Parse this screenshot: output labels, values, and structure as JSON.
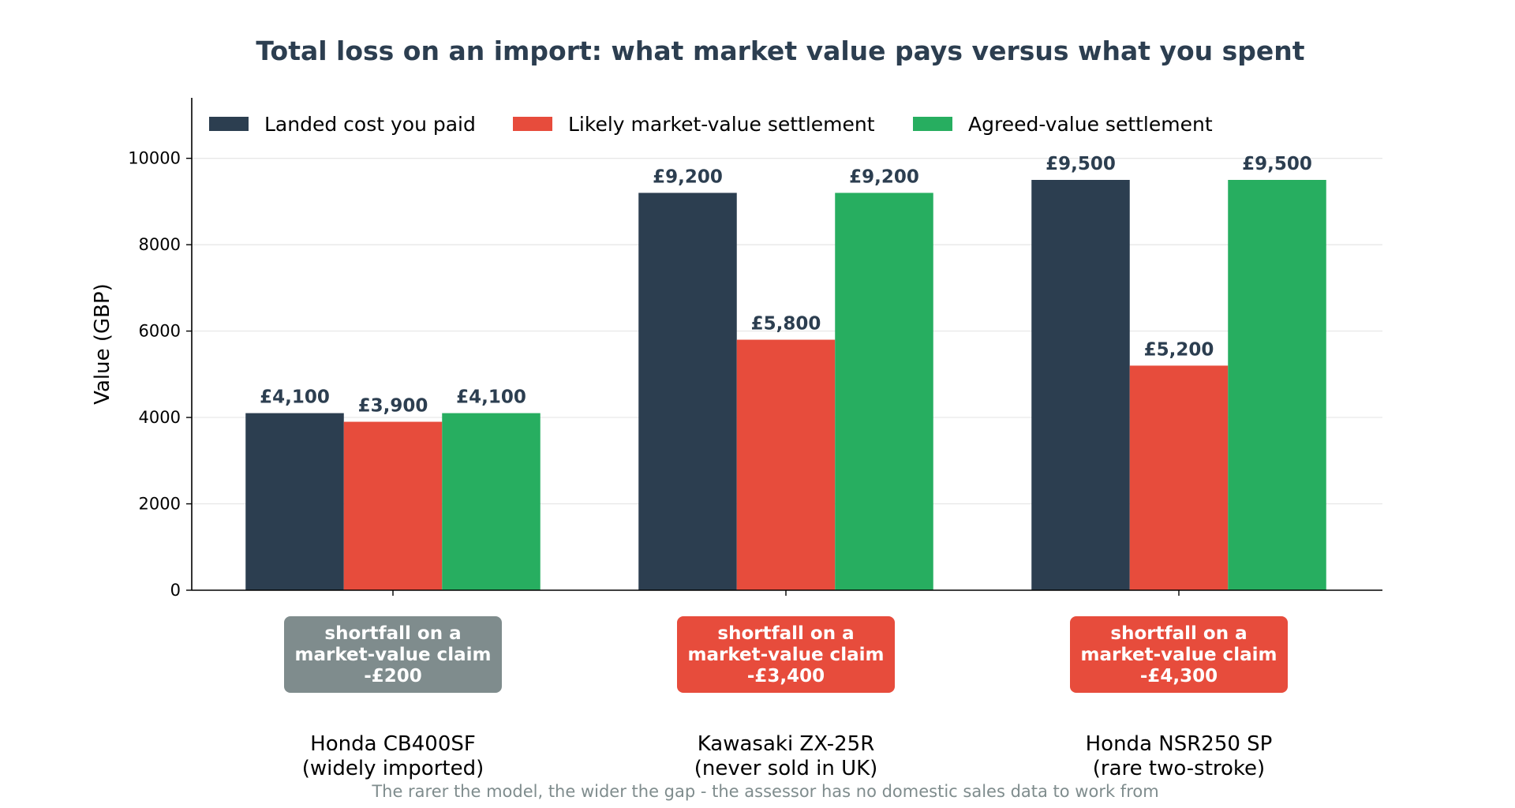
{
  "chart_data": {
    "type": "bar",
    "title": "Total loss on an import: what market value pays versus what you spent",
    "xlabel": "",
    "ylabel": "Value (GBP)",
    "ylim": [
      0,
      11400
    ],
    "yticks": [
      0,
      2000,
      4000,
      6000,
      8000,
      10000
    ],
    "grid": "horizontal",
    "legend_position": "top-left",
    "categories": [
      [
        "Honda CB400SF",
        "(widely imported)"
      ],
      [
        "Kawasaki ZX-25R",
        "(never sold in UK)"
      ],
      [
        "Honda NSR250 SP",
        "(rare two-stroke)"
      ]
    ],
    "series": [
      {
        "name": "Landed cost you paid",
        "color": "#2c3e50",
        "values": [
          4100,
          9200,
          9500
        ],
        "labels": [
          "£4,100",
          "£9,200",
          "£9,500"
        ]
      },
      {
        "name": "Likely market-value settlement",
        "color": "#e74c3c",
        "values": [
          3900,
          5800,
          5200
        ],
        "labels": [
          "£3,900",
          "£5,800",
          "£5,200"
        ]
      },
      {
        "name": "Agreed-value settlement",
        "color": "#27ae60",
        "values": [
          4100,
          9200,
          9500
        ],
        "labels": [
          "£4,100",
          "£9,200",
          "£9,500"
        ]
      }
    ],
    "annotations": [
      {
        "lines": [
          "shortfall on a",
          "market-value claim",
          "-£200"
        ],
        "color": "#7f8c8d"
      },
      {
        "lines": [
          "shortfall on a",
          "market-value claim",
          "-£3,400"
        ],
        "color": "#e74c3c"
      },
      {
        "lines": [
          "shortfall on a",
          "market-value claim",
          "-£4,300"
        ],
        "color": "#e74c3c"
      }
    ],
    "footnote": "The rarer the model, the wider the gap - the assessor has no domestic sales data to work from",
    "colors": {
      "title": "#2c3e50",
      "value_label": "#2c3e50",
      "grid": "#e6e6e6",
      "footnote": "#7f8c8d"
    }
  }
}
